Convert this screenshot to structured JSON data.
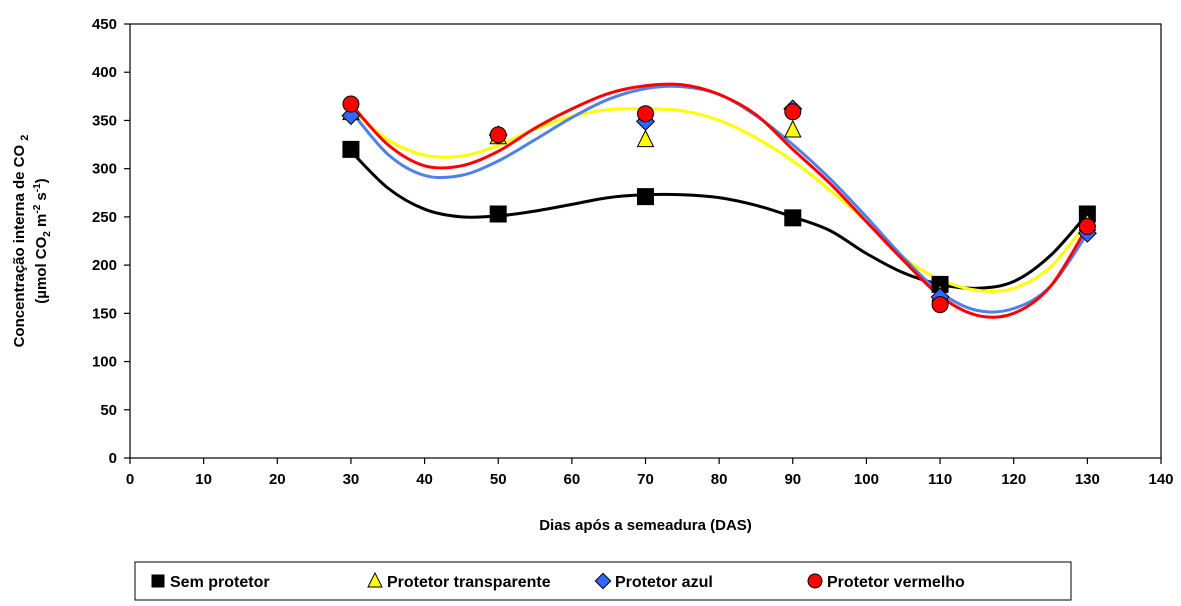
{
  "chart_data": {
    "type": "scatter",
    "title": "",
    "xlabel": "Dias após a semeadura (DAS)",
    "ylabel_line1": "Concentração interna de CO",
    "ylabel_line1_sub": "2",
    "ylabel_line2_parts": [
      "(µmol CO",
      "2",
      " m",
      "-2",
      " s",
      "-1",
      ")"
    ],
    "xlim": [
      0,
      140
    ],
    "ylim": [
      0,
      450
    ],
    "x_ticks": [
      0,
      10,
      20,
      30,
      40,
      50,
      60,
      70,
      80,
      90,
      100,
      110,
      120,
      130,
      140
    ],
    "y_ticks": [
      0,
      50,
      100,
      150,
      200,
      250,
      300,
      350,
      400,
      450
    ],
    "grid": false,
    "legend_position": "bottom",
    "x": [
      30,
      50,
      70,
      90,
      110,
      130
    ],
    "series": [
      {
        "name": "Sem protetor",
        "marker": "square",
        "color": "#000000",
        "line_color": "#000000",
        "values": [
          320,
          253,
          271,
          249,
          180,
          253
        ]
      },
      {
        "name": "Protetor transparente",
        "marker": "triangle",
        "color": "#ffff00",
        "line_color": "#ffff00",
        "values": [
          358,
          333,
          330,
          340,
          170,
          243
        ]
      },
      {
        "name": "Protetor azul",
        "marker": "diamond",
        "color": "#3366ff",
        "line_color": "#4f81e8",
        "values": [
          355,
          335,
          349,
          362,
          167,
          233
        ]
      },
      {
        "name": "Protetor vermelho",
        "marker": "circle",
        "color": "#ff0000",
        "line_color": "#ff0000",
        "values": [
          367,
          335,
          357,
          359,
          159,
          240
        ]
      }
    ],
    "trend_curves": [
      {
        "name": "Sem protetor",
        "x": [
          30,
          35,
          40,
          45,
          50,
          55,
          60,
          65,
          70,
          75,
          80,
          85,
          90,
          95,
          100,
          105,
          110,
          115,
          120,
          125,
          130
        ],
        "y": [
          318,
          280,
          258,
          250,
          251,
          256,
          263,
          270,
          273,
          273,
          270,
          262,
          250,
          236,
          212,
          192,
          180,
          176,
          183,
          210,
          253
        ]
      },
      {
        "name": "Protetor transparente",
        "x": [
          30,
          35,
          40,
          45,
          50,
          55,
          60,
          65,
          70,
          75,
          80,
          85,
          90,
          95,
          100,
          105,
          110,
          115,
          120,
          125,
          130
        ],
        "y": [
          362,
          330,
          314,
          313,
          324,
          341,
          354,
          361,
          362,
          360,
          350,
          332,
          308,
          278,
          245,
          208,
          185,
          174,
          176,
          198,
          245
        ]
      },
      {
        "name": "Protetor azul",
        "x": [
          30,
          35,
          40,
          45,
          50,
          55,
          60,
          65,
          70,
          75,
          80,
          85,
          90,
          95,
          100,
          105,
          110,
          115,
          120,
          125,
          130
        ],
        "y": [
          360,
          315,
          293,
          293,
          308,
          330,
          353,
          372,
          383,
          385,
          377,
          355,
          325,
          290,
          250,
          208,
          172,
          153,
          155,
          178,
          233
        ]
      },
      {
        "name": "Protetor vermelho",
        "x": [
          30,
          35,
          40,
          45,
          50,
          55,
          60,
          65,
          70,
          75,
          80,
          85,
          90,
          95,
          100,
          105,
          110,
          115,
          120,
          125,
          130
        ],
        "y": [
          367,
          325,
          303,
          303,
          318,
          342,
          362,
          378,
          386,
          387,
          377,
          356,
          320,
          285,
          245,
          205,
          168,
          148,
          150,
          178,
          240
        ]
      }
    ]
  }
}
